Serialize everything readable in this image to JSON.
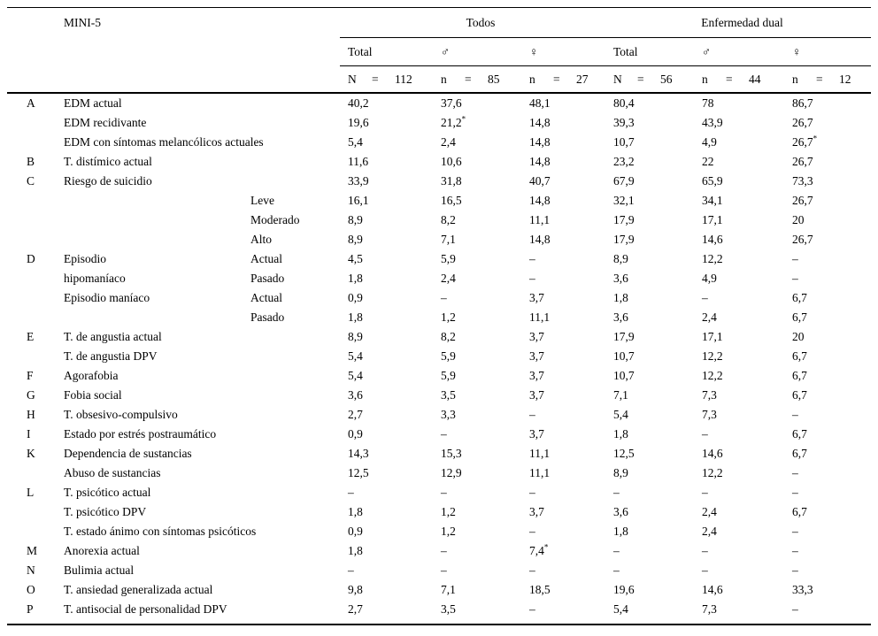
{
  "page": {
    "background": "#ffffff",
    "text_color": "#000000"
  },
  "chart_data": {
    "type": "table",
    "title": "MINI-5",
    "group_headers": [
      "Todos",
      "Enfermedad dual"
    ],
    "sub_headers": [
      "Total",
      "♂",
      "♀",
      "Total",
      "♂",
      "♀"
    ],
    "n_labels": [
      [
        "N",
        "=",
        "112"
      ],
      [
        "n",
        "=",
        "85"
      ],
      [
        "n",
        "=",
        "27"
      ],
      [
        "N",
        "=",
        "56"
      ],
      [
        "n",
        "=",
        "44"
      ],
      [
        "n",
        "=",
        "12"
      ]
    ],
    "rows": [
      {
        "letter": "A",
        "label": "EDM actual",
        "sub": "",
        "values": [
          "40,2",
          "37,6",
          "48,1",
          "80,4",
          "78",
          "86,7"
        ]
      },
      {
        "letter": "",
        "label": "EDM recidivante",
        "sub": "",
        "values": [
          "19,6",
          "21,2*",
          "14,8",
          "39,3",
          "43,9",
          "26,7"
        ]
      },
      {
        "letter": "",
        "label": "EDM con síntomas melancólicos actuales",
        "sub": "",
        "values": [
          "5,4",
          "2,4",
          "14,8",
          "10,7",
          "4,9",
          "26,7*"
        ]
      },
      {
        "letter": "B",
        "label": "T. distímico actual",
        "sub": "",
        "values": [
          "11,6",
          "10,6",
          "14,8",
          "23,2",
          "22",
          "26,7"
        ]
      },
      {
        "letter": "C",
        "label": "Riesgo de suicidio",
        "sub": "",
        "values": [
          "33,9",
          "31,8",
          "40,7",
          "67,9",
          "65,9",
          "73,3"
        ]
      },
      {
        "letter": "",
        "label": "",
        "sub": "Leve",
        "values": [
          "16,1",
          "16,5",
          "14,8",
          "32,1",
          "34,1",
          "26,7"
        ]
      },
      {
        "letter": "",
        "label": "",
        "sub": "Moderado",
        "values": [
          "8,9",
          "8,2",
          "11,1",
          "17,9",
          "17,1",
          "20"
        ]
      },
      {
        "letter": "",
        "label": "",
        "sub": "Alto",
        "values": [
          "8,9",
          "7,1",
          "14,8",
          "17,9",
          "14,6",
          "26,7"
        ]
      },
      {
        "letter": "D",
        "label": "Episodio",
        "sub": "Actual",
        "values": [
          "4,5",
          "5,9",
          "–",
          "8,9",
          "12,2",
          "–"
        ]
      },
      {
        "letter": "",
        "label": "hipomaníaco",
        "sub": "Pasado",
        "values": [
          "1,8",
          "2,4",
          "–",
          "3,6",
          "4,9",
          "–"
        ]
      },
      {
        "letter": "",
        "label": "Episodio maníaco",
        "sub": "Actual",
        "values": [
          "0,9",
          "–",
          "3,7",
          "1,8",
          "–",
          "6,7"
        ]
      },
      {
        "letter": "",
        "label": "",
        "sub": "Pasado",
        "values": [
          "1,8",
          "1,2",
          "11,1",
          "3,6",
          "2,4",
          "6,7"
        ]
      },
      {
        "letter": "E",
        "label": "T. de angustia actual",
        "sub": "",
        "values": [
          "8,9",
          "8,2",
          "3,7",
          "17,9",
          "17,1",
          "20"
        ]
      },
      {
        "letter": "",
        "label": "T. de angustia DPV",
        "sub": "",
        "values": [
          "5,4",
          "5,9",
          "3,7",
          "10,7",
          "12,2",
          "6,7"
        ]
      },
      {
        "letter": "F",
        "label": "Agorafobia",
        "sub": "",
        "values": [
          "5,4",
          "5,9",
          "3,7",
          "10,7",
          "12,2",
          "6,7"
        ]
      },
      {
        "letter": "G",
        "label": "Fobia social",
        "sub": "",
        "values": [
          "3,6",
          "3,5",
          "3,7",
          "7,1",
          "7,3",
          "6,7"
        ]
      },
      {
        "letter": "H",
        "label": "T. obsesivo-compulsivo",
        "sub": "",
        "values": [
          "2,7",
          "3,3",
          "–",
          "5,4",
          "7,3",
          "–"
        ]
      },
      {
        "letter": "I",
        "label": "Estado por estrés postraumático",
        "sub": "",
        "values": [
          "0,9",
          "–",
          "3,7",
          "1,8",
          "–",
          "6,7"
        ]
      },
      {
        "letter": "K",
        "label": "Dependencia de sustancias",
        "sub": "",
        "values": [
          "14,3",
          "15,3",
          "11,1",
          "12,5",
          "14,6",
          "6,7"
        ]
      },
      {
        "letter": "",
        "label": "Abuso de sustancias",
        "sub": "",
        "values": [
          "12,5",
          "12,9",
          "11,1",
          "8,9",
          "12,2",
          "–"
        ]
      },
      {
        "letter": "L",
        "label": "T. psicótico actual",
        "sub": "",
        "values": [
          "–",
          "–",
          "–",
          "–",
          "–",
          "–"
        ]
      },
      {
        "letter": "",
        "label": "T. psicótico DPV",
        "sub": "",
        "values": [
          "1,8",
          "1,2",
          "3,7",
          "3,6",
          "2,4",
          "6,7"
        ]
      },
      {
        "letter": "",
        "label": "T. estado ánimo con síntomas psicóticos",
        "sub": "",
        "values": [
          "0,9",
          "1,2",
          "–",
          "1,8",
          "2,4",
          "–"
        ]
      },
      {
        "letter": "M",
        "label": "Anorexia actual",
        "sub": "",
        "values": [
          "1,8",
          "–",
          "7,4*",
          "–",
          "–",
          "–"
        ]
      },
      {
        "letter": "N",
        "label": "Bulimia actual",
        "sub": "",
        "values": [
          "–",
          "–",
          "–",
          "–",
          "–",
          "–"
        ]
      },
      {
        "letter": "O",
        "label": "T. ansiedad generalizada actual",
        "sub": "",
        "values": [
          "9,8",
          "7,1",
          "18,5",
          "19,6",
          "14,6",
          "33,3"
        ]
      },
      {
        "letter": "P",
        "label": "T. antisocial de personalidad DPV",
        "sub": "",
        "values": [
          "2,7",
          "3,5",
          "–",
          "5,4",
          "7,3",
          "–"
        ]
      }
    ]
  }
}
